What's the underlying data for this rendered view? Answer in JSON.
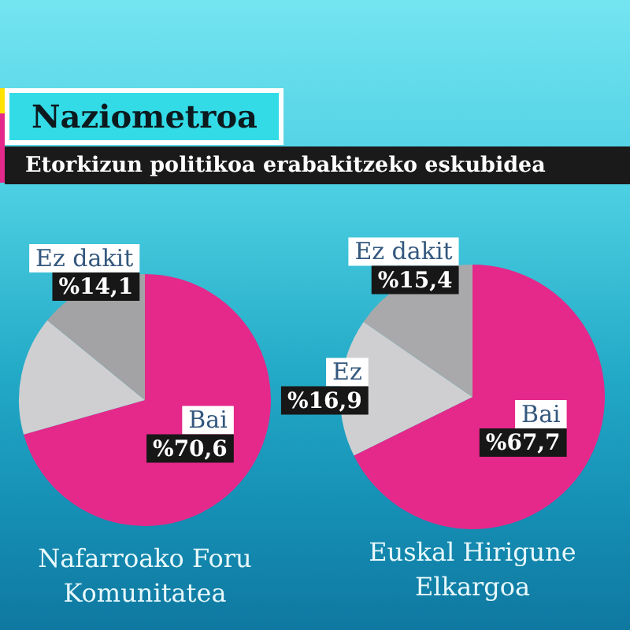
{
  "chart_data": [
    {
      "type": "other",
      "title": "Naziometroa",
      "subtitle": "Etorkizun politikoa erabakitzeko eskubidea"
    },
    {
      "type": "pie",
      "title": "Nafarroako Foru Komunitatea",
      "categories": [
        "Bai",
        null,
        "Ez dakit"
      ],
      "values": [
        70.6,
        15.3,
        14.1
      ],
      "colors": [
        "#e4298a",
        "#cfcfd1",
        "#a3a3a5"
      ],
      "value_labels": [
        "%70,6",
        null,
        "%14,1"
      ]
    },
    {
      "type": "pie",
      "title": "Euskal Hirigune Elkargoa",
      "categories": [
        "Bai",
        "Ez",
        "Ez dakit"
      ],
      "values": [
        67.7,
        16.9,
        15.4
      ],
      "colors": [
        "#e4298a",
        "#cfcfd1",
        "#a9a9ab"
      ],
      "value_labels": [
        "%67,7",
        "%16,9",
        "%15,4"
      ]
    }
  ]
}
